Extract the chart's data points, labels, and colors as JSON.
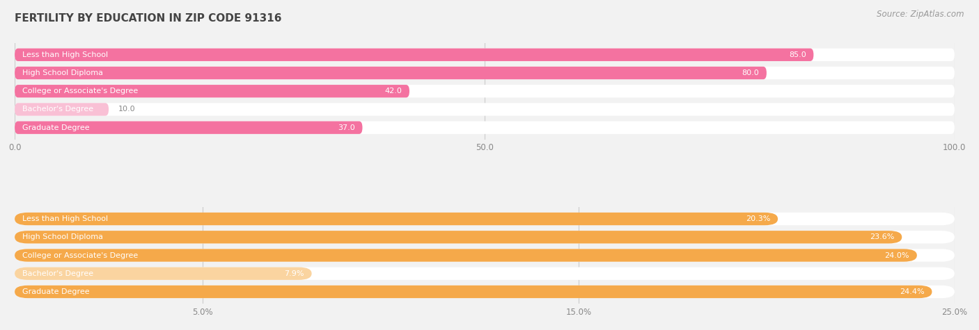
{
  "title": "FERTILITY BY EDUCATION IN ZIP CODE 91316",
  "source": "Source: ZipAtlas.com",
  "top_section": {
    "categories": [
      "Less than High School",
      "High School Diploma",
      "College or Associate's Degree",
      "Bachelor's Degree",
      "Graduate Degree"
    ],
    "values": [
      85.0,
      80.0,
      42.0,
      10.0,
      37.0
    ],
    "xlim": [
      0,
      100
    ],
    "xticks": [
      0.0,
      50.0,
      100.0
    ],
    "xtick_labels": [
      "0.0",
      "50.0",
      "100.0"
    ],
    "bar_color_strong": "#F472A0",
    "bar_color_light": "#F9C0D5",
    "light_indices": [
      3
    ],
    "label_color": "#888888"
  },
  "bottom_section": {
    "categories": [
      "Less than High School",
      "High School Diploma",
      "College or Associate's Degree",
      "Bachelor's Degree",
      "Graduate Degree"
    ],
    "values": [
      20.3,
      23.6,
      24.0,
      7.9,
      24.4
    ],
    "xlim": [
      0,
      25
    ],
    "xticks": [
      5.0,
      15.0,
      25.0
    ],
    "xtick_labels": [
      "5.0%",
      "15.0%",
      "25.0%"
    ],
    "bar_color_strong": "#F5A94A",
    "bar_color_light": "#FAD4A0",
    "light_indices": [
      3
    ],
    "label_color": "#888888"
  },
  "bg_color": "#f2f2f2",
  "bar_bg_color": "#ffffff",
  "label_inside_color": "#ffffff",
  "label_outside_color": "#888888",
  "grid_color": "#cccccc",
  "title_color": "#444444",
  "source_color": "#999999"
}
